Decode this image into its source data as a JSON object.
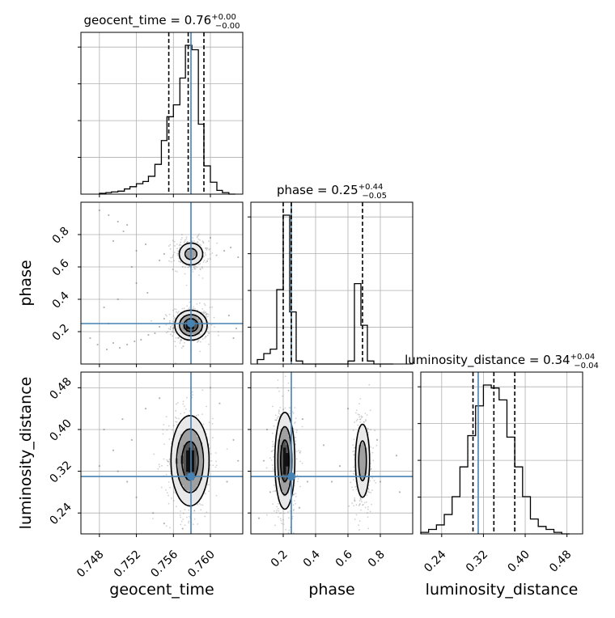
{
  "chart_data": {
    "type": "corner",
    "parameters": [
      "geocent_time",
      "phase",
      "luminosity_distance"
    ],
    "titles": {
      "geocent_time": {
        "prefix": "geocent_time = ",
        "value": "0.76",
        "upper": "+0.00",
        "lower": "−0.00"
      },
      "phase": {
        "prefix": "phase = ",
        "value": "0.25",
        "upper": "+0.44",
        "lower": "−0.05"
      },
      "luminosity_distance": {
        "prefix": "luminosity_distance = ",
        "value": "0.34",
        "upper": "+0.04",
        "lower": "−0.04"
      }
    },
    "ranges": {
      "geocent_time": [
        0.746,
        0.7635
      ],
      "phase": [
        0.0,
        1.0
      ],
      "luminosity_distance": [
        0.2,
        0.51
      ]
    },
    "ticks": {
      "geocent_time": [
        "0.748",
        "0.752",
        "0.756",
        "0.760"
      ],
      "phase": [
        "0.2",
        "0.4",
        "0.6",
        "0.8"
      ],
      "luminosity_distance": [
        "0.24",
        "0.32",
        "0.40",
        "0.48"
      ]
    },
    "truth": {
      "geocent_time": 0.7579,
      "phase": 0.25,
      "luminosity_distance": 0.31
    },
    "quantiles": {
      "geocent_time": [
        0.7555,
        0.7576,
        0.7593
      ],
      "phase": [
        0.2,
        0.25,
        0.69
      ],
      "luminosity_distance": [
        0.3,
        0.34,
        0.38
      ]
    },
    "histograms": {
      "geocent_time": {
        "edges": [
          0.748,
          0.7487,
          0.7493,
          0.75,
          0.7507,
          0.7513,
          0.752,
          0.7527,
          0.7533,
          0.754,
          0.7547,
          0.7553,
          0.756,
          0.7567,
          0.7573,
          0.758,
          0.7587,
          0.7593,
          0.76,
          0.7607,
          0.7613,
          0.762,
          0.7627
        ],
        "counts": [
          0.005,
          0.01,
          0.015,
          0.02,
          0.035,
          0.05,
          0.07,
          0.085,
          0.12,
          0.2,
          0.36,
          0.52,
          0.6,
          0.78,
          1.0,
          0.97,
          0.47,
          0.19,
          0.08,
          0.025,
          0.01,
          0.0
        ]
      },
      "phase": {
        "edges": [
          0.04,
          0.08,
          0.12,
          0.16,
          0.2,
          0.24,
          0.28,
          0.32,
          0.36,
          0.4,
          0.44,
          0.48,
          0.52,
          0.56,
          0.6,
          0.64,
          0.68,
          0.72,
          0.76,
          0.8,
          0.84,
          0.88
        ],
        "counts": [
          0.03,
          0.07,
          0.1,
          0.5,
          1.0,
          0.35,
          0.02,
          0.0,
          0.0,
          0.0,
          0.0,
          0.0,
          0.0,
          0.0,
          0.02,
          0.54,
          0.26,
          0.02,
          0.0,
          0.0,
          0.0
        ]
      },
      "luminosity_distance": {
        "edges": [
          0.2,
          0.215,
          0.23,
          0.245,
          0.26,
          0.275,
          0.29,
          0.305,
          0.32,
          0.335,
          0.35,
          0.365,
          0.38,
          0.395,
          0.41,
          0.425,
          0.44,
          0.455,
          0.47,
          0.485
        ],
        "counts": [
          0.01,
          0.03,
          0.06,
          0.13,
          0.25,
          0.45,
          0.66,
          0.86,
          1.0,
          0.98,
          0.9,
          0.65,
          0.45,
          0.25,
          0.1,
          0.05,
          0.03,
          0.01,
          0.0
        ]
      }
    },
    "scatter_points": {
      "geocent_time|phase": [
        [
          0.748,
          0.95
        ],
        [
          0.749,
          0.92
        ],
        [
          0.75,
          0.88
        ],
        [
          0.751,
          0.86
        ],
        [
          0.7506,
          0.82
        ],
        [
          0.7495,
          0.76
        ],
        [
          0.752,
          0.7
        ],
        [
          0.753,
          0.74
        ],
        [
          0.7515,
          0.6
        ],
        [
          0.752,
          0.5
        ],
        [
          0.7532,
          0.44
        ],
        [
          0.75,
          0.4
        ],
        [
          0.7485,
          0.35
        ],
        [
          0.749,
          0.25
        ],
        [
          0.747,
          0.16
        ],
        [
          0.7478,
          0.12
        ],
        [
          0.7488,
          0.09
        ],
        [
          0.7495,
          0.13
        ],
        [
          0.7502,
          0.1
        ],
        [
          0.751,
          0.12
        ],
        [
          0.7518,
          0.14
        ],
        [
          0.7525,
          0.15
        ],
        [
          0.7533,
          0.18
        ],
        [
          0.754,
          0.19
        ],
        [
          0.7545,
          0.23
        ],
        [
          0.755,
          0.28
        ],
        [
          0.762,
          0.3
        ],
        [
          0.7628,
          0.22
        ],
        [
          0.7625,
          0.16
        ],
        [
          0.7615,
          0.7
        ],
        [
          0.7622,
          0.72
        ],
        [
          0.763,
          0.66
        ],
        [
          0.755,
          0.68
        ],
        [
          0.7545,
          0.64
        ],
        [
          0.76,
          0.78
        ]
      ],
      "geocent_time|luminosity_distance": [
        [
          0.7485,
          0.4
        ],
        [
          0.7495,
          0.36
        ],
        [
          0.7505,
          0.42
        ],
        [
          0.751,
          0.3
        ],
        [
          0.752,
          0.27
        ],
        [
          0.753,
          0.44
        ],
        [
          0.7538,
          0.24
        ],
        [
          0.7545,
          0.46
        ],
        [
          0.755,
          0.22
        ],
        [
          0.761,
          0.45
        ],
        [
          0.7618,
          0.3
        ],
        [
          0.7625,
          0.38
        ],
        [
          0.763,
          0.34
        ],
        [
          0.76,
          0.48
        ],
        [
          0.757,
          0.21
        ],
        [
          0.748,
          0.33
        ],
        [
          0.75,
          0.32
        ],
        [
          0.7515,
          0.38
        ]
      ],
      "phase|luminosity_distance": [
        [
          0.1,
          0.4
        ],
        [
          0.08,
          0.34
        ],
        [
          0.12,
          0.28
        ],
        [
          0.32,
          0.42
        ],
        [
          0.35,
          0.3
        ],
        [
          0.3,
          0.25
        ],
        [
          0.6,
          0.44
        ],
        [
          0.78,
          0.38
        ],
        [
          0.8,
          0.3
        ],
        [
          0.55,
          0.33
        ],
        [
          0.9,
          0.35
        ],
        [
          0.92,
          0.28
        ],
        [
          0.05,
          0.23
        ],
        [
          0.45,
          0.37
        ],
        [
          0.5,
          0.3
        ]
      ]
    },
    "density": {
      "geocent_time|phase": [
        {
          "cx": 0.7579,
          "cy": 0.24,
          "sx": 0.00085,
          "sy": 0.045,
          "weight": 1.0
        },
        {
          "cx": 0.7579,
          "cy": 0.68,
          "sx": 0.00075,
          "sy": 0.04,
          "weight": 0.5
        }
      ],
      "geocent_time|luminosity_distance": [
        {
          "cx": 0.7578,
          "cy": 0.34,
          "sx": 0.001,
          "sy": 0.042,
          "weight": 1.0
        }
      ],
      "phase|luminosity_distance": [
        {
          "cx": 0.21,
          "cy": 0.34,
          "sx": 0.03,
          "sy": 0.045,
          "weight": 1.0
        },
        {
          "cx": 0.69,
          "cy": 0.34,
          "sx": 0.025,
          "sy": 0.04,
          "weight": 0.55
        }
      ]
    },
    "contour_levels": [
      0.12,
      0.35,
      0.68
    ],
    "truth_color": "#4682b4",
    "line_color": "#000000",
    "grid": true
  }
}
